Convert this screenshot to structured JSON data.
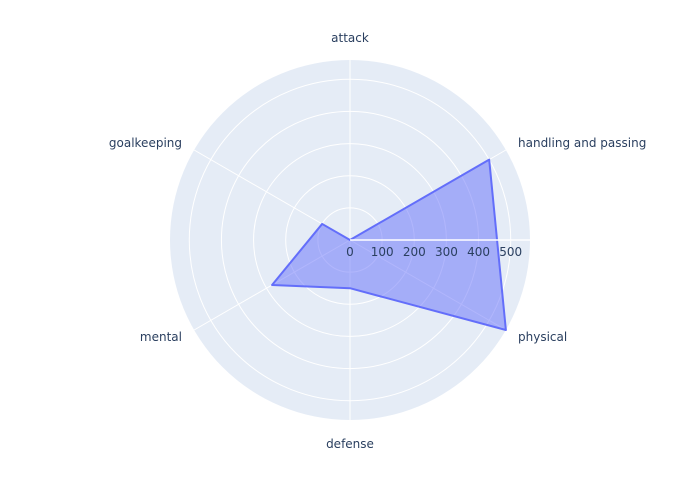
{
  "chart_data": {
    "type": "radar",
    "title": "",
    "axes": [
      "attack",
      "handling and passing",
      "physical",
      "defense",
      "mental",
      "goalkeeping"
    ],
    "radial_range": [
      0,
      560
    ],
    "radial_ticks": [
      0,
      100,
      200,
      300,
      400,
      500
    ],
    "grid": true,
    "series": [
      {
        "values": [
          0,
          500,
          560,
          150,
          280,
          100
        ],
        "color": "#636efa"
      }
    ]
  },
  "colors": {
    "plot_background": "#e5ecf6",
    "grid": "#ffffff",
    "text": "#2a3f5f"
  }
}
